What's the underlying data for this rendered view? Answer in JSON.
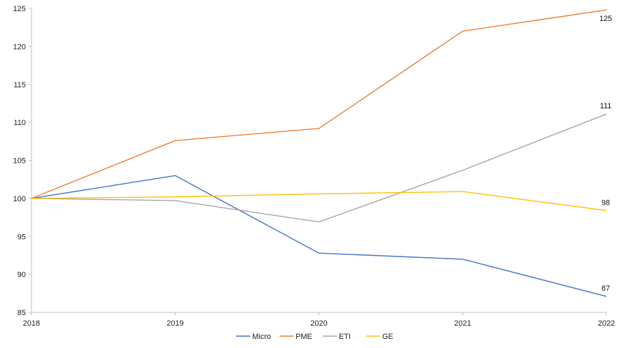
{
  "chart_data": {
    "type": "line",
    "title": "",
    "xlabel": "",
    "ylabel": "",
    "x": [
      "2018",
      "2019",
      "2020",
      "2021",
      "2022"
    ],
    "ylim": [
      85,
      125
    ],
    "yticks": [
      "85",
      "90",
      "95",
      "100",
      "105",
      "110",
      "115",
      "120",
      "125"
    ],
    "grid": false,
    "legend": "bottom",
    "series": [
      {
        "name": "Micro",
        "color": "#4472C4",
        "values": [
          100,
          103.0,
          92.8,
          92.0,
          87.1
        ],
        "end_label": "87"
      },
      {
        "name": "PME",
        "color": "#ED7D31",
        "values": [
          100,
          107.6,
          109.2,
          122.0,
          124.8
        ],
        "end_label": "125"
      },
      {
        "name": "ETI",
        "color": "#A5A5A5",
        "values": [
          100,
          99.7,
          96.9,
          103.7,
          111.1
        ],
        "end_label": "111"
      },
      {
        "name": "GE",
        "color": "#FFC000",
        "values": [
          100,
          100.2,
          100.6,
          100.9,
          98.4
        ],
        "end_label": "98"
      }
    ]
  }
}
